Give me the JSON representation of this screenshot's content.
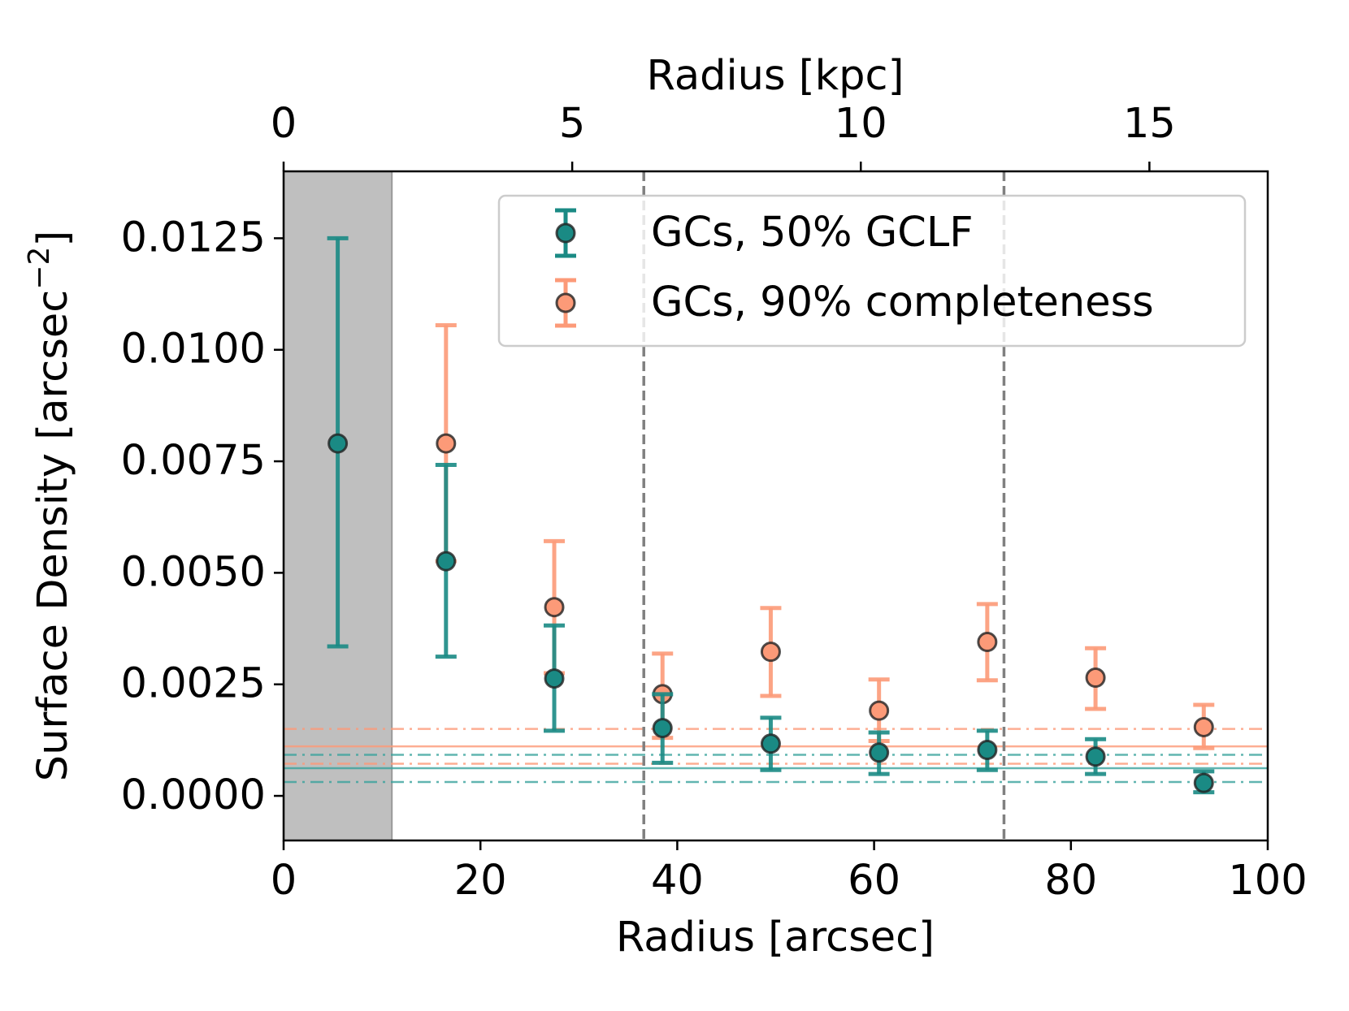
{
  "chart_data": {
    "type": "scatter",
    "xlabel": "Radius [arcsec]",
    "x2label": "Radius [kpc]",
    "ylabel": {
      "text": "Surface Density [arcsec",
      "superscript": "−2",
      "suffix": "]"
    },
    "xlim": [
      0,
      100
    ],
    "xticks": [
      0,
      20,
      40,
      60,
      80,
      100
    ],
    "x2lim": [
      0,
      17.05
    ],
    "x2ticks": [
      0,
      5,
      10,
      15
    ],
    "ylim": [
      -0.001,
      0.014
    ],
    "yticks": [
      {
        "value": 0,
        "label": "0.0000"
      },
      {
        "value": 0.0025,
        "label": "0.0025"
      },
      {
        "value": 0.005,
        "label": "0.0050"
      },
      {
        "value": 0.0075,
        "label": "0.0075"
      },
      {
        "value": 0.01,
        "label": "0.0100"
      },
      {
        "value": 0.0125,
        "label": "0.0125"
      }
    ],
    "grid": false,
    "legend": "upper right",
    "shaded_x": [
      0,
      11
    ],
    "shaded_color": "#bfbfbf",
    "vlines": [
      36.6,
      73.2
    ],
    "vline_color": "#808080",
    "hlines": [
      {
        "y": 0.0015,
        "color": "#fc9a78",
        "style": "dashdot"
      },
      {
        "y": 0.00111,
        "color": "#fc9a78",
        "style": "solid"
      },
      {
        "y": 0.00072,
        "color": "#fc9a78",
        "style": "dashdot"
      },
      {
        "y": 0.00092,
        "color": "#3aa39c",
        "style": "dashdot"
      },
      {
        "y": 0.00062,
        "color": "#3aa39c",
        "style": "solid"
      },
      {
        "y": 0.00031,
        "color": "#3aa39c",
        "style": "dashdot"
      }
    ],
    "series": [
      {
        "name": "GCs, 90% completeness",
        "color": "#fc9a78",
        "x": [
          16.5,
          27.5,
          38.5,
          49.5,
          60.5,
          71.5,
          82.5,
          93.5
        ],
        "values": [
          0.0079,
          0.00423,
          0.00228,
          0.00323,
          0.00191,
          0.00345,
          0.00265,
          0.00154
        ],
        "lower": [
          0.00526,
          0.00275,
          0.0013,
          0.00224,
          0.00123,
          0.00259,
          0.00195,
          0.00107
        ],
        "upper": [
          0.01055,
          0.00571,
          0.00319,
          0.00421,
          0.00261,
          0.0043,
          0.00331,
          0.00204
        ]
      },
      {
        "name": "GCs, 50% GCLF",
        "color": "#1a8a84",
        "x": [
          5.5,
          16.5,
          27.5,
          38.5,
          49.5,
          60.5,
          71.5,
          82.5,
          93.5
        ],
        "values": [
          0.0079,
          0.00526,
          0.00263,
          0.00152,
          0.00117,
          0.00097,
          0.00103,
          0.00088,
          0.00029
        ],
        "lower": [
          0.00335,
          0.00312,
          0.00146,
          0.00074,
          0.00058,
          0.00049,
          0.00058,
          0.00049,
          8e-05
        ],
        "upper": [
          0.0125,
          0.00742,
          0.00382,
          0.00228,
          0.00175,
          0.00142,
          0.00146,
          0.00127,
          0.00055
        ]
      }
    ]
  }
}
